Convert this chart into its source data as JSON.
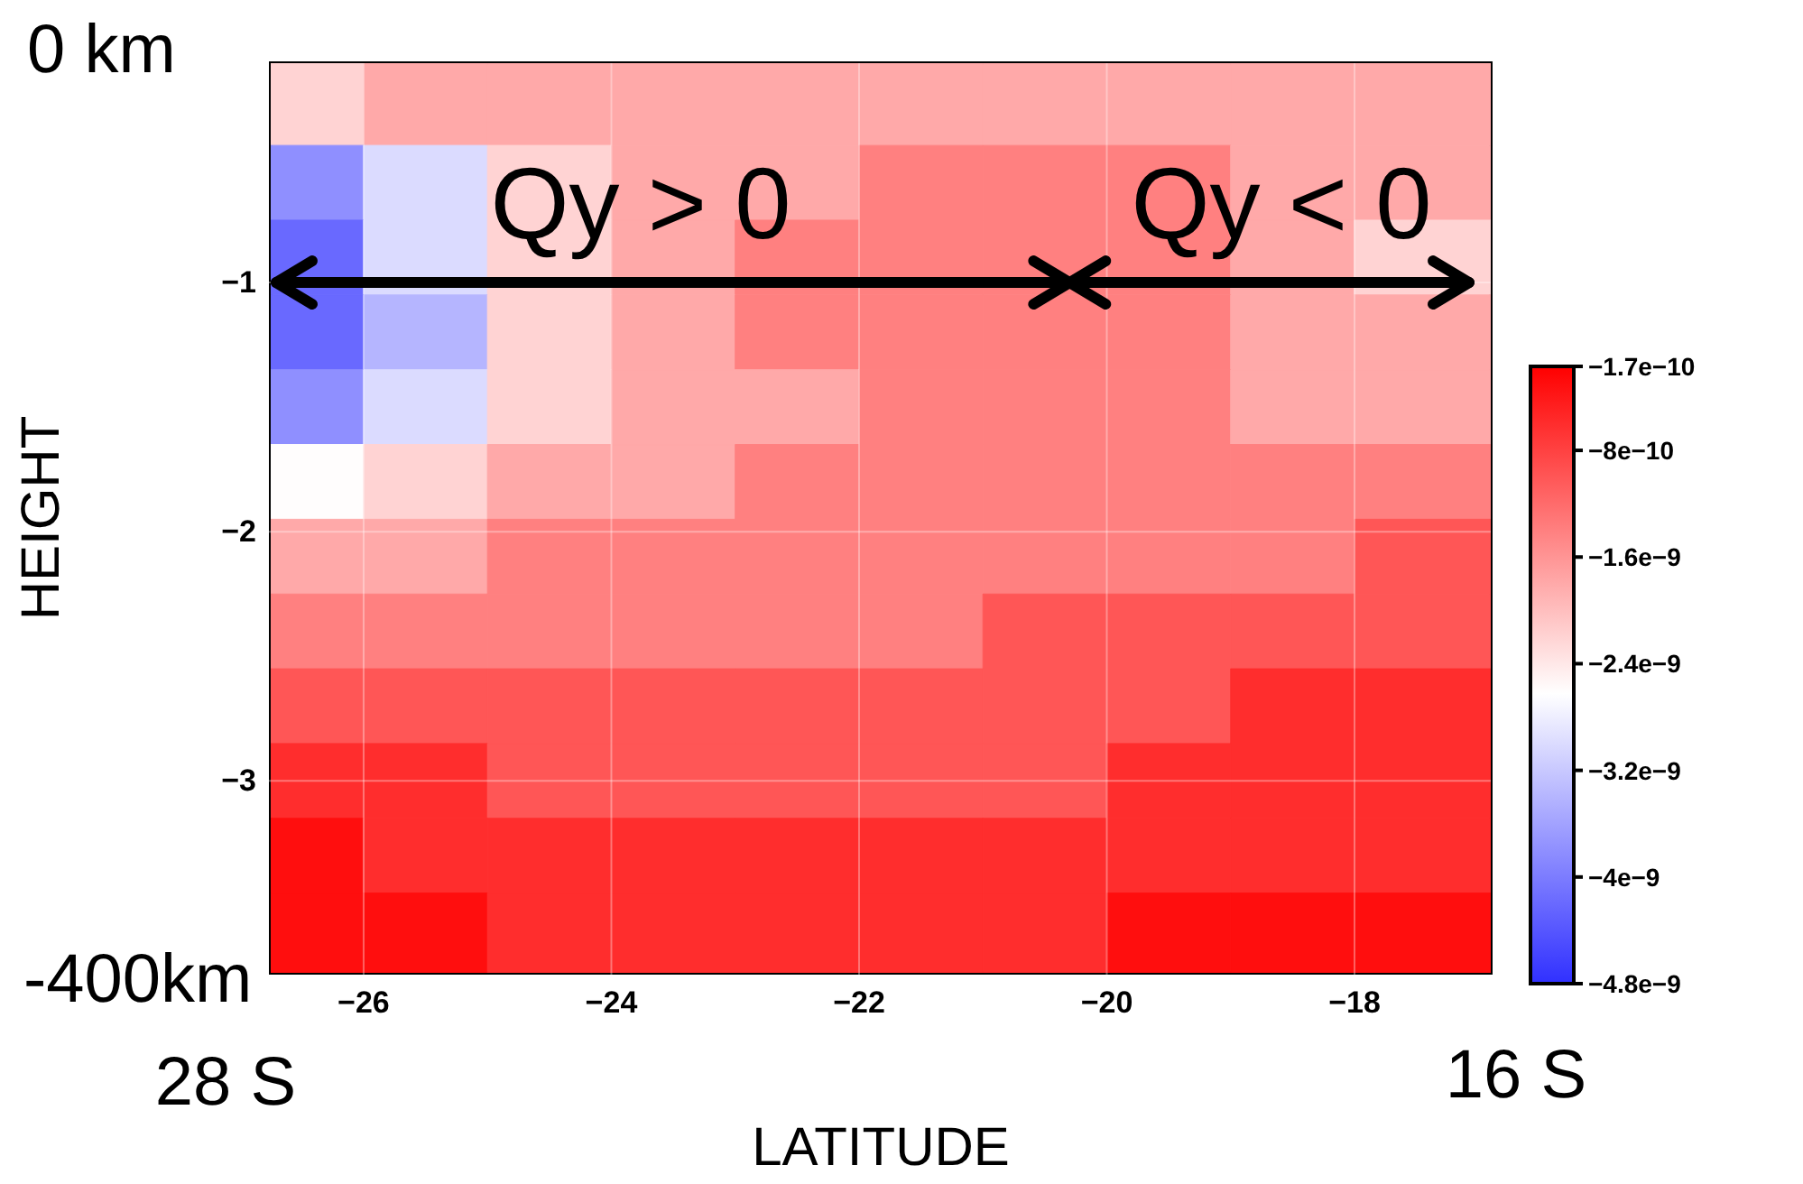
{
  "chart_data": {
    "type": "heatmap",
    "xlabel": "LATITUDE",
    "ylabel": "HEIGHT",
    "x": [
      -26.5,
      -25.5,
      -24.5,
      -23.5,
      -22.5,
      -21.5,
      -20.5,
      -19.5,
      -18.5,
      -17.5
    ],
    "y": [
      -0.3,
      -0.6,
      -0.9,
      -1.2,
      -1.5,
      -1.8,
      -2.1,
      -2.4,
      -2.7,
      -3.0,
      -3.3,
      -3.6
    ],
    "xlim": [
      -26.75,
      -16.9
    ],
    "xticks": [
      {
        "value": -26,
        "label": "−26"
      },
      {
        "value": -24,
        "label": "−24"
      },
      {
        "value": -22,
        "label": "−22"
      },
      {
        "value": -20,
        "label": "−20"
      },
      {
        "value": -18,
        "label": "−18"
      }
    ],
    "ylim": [
      -3.77,
      -0.12
    ],
    "yticks": [
      {
        "value": -1,
        "label": "−1"
      },
      {
        "value": -2,
        "label": "−2"
      },
      {
        "value": -3,
        "label": "−3"
      }
    ],
    "grid": true,
    "clim": [
      -4.8e-09,
      -1.7e-10
    ],
    "cticks": [
      {
        "value": -1.7e-10,
        "label": "−1.7e−10"
      },
      {
        "value": -8e-10,
        "label": "−8e−10"
      },
      {
        "value": -1.6e-09,
        "label": "−1.6e−9"
      },
      {
        "value": -2.4e-09,
        "label": "−2.4e−9"
      },
      {
        "value": -3.2e-09,
        "label": "−3.2e−9"
      },
      {
        "value": -4e-09,
        "label": "−4e−9"
      },
      {
        "value": -4.8e-09,
        "label": "−4.8e−9"
      }
    ],
    "cells": [
      [
        -2.2e-09,
        -1.8e-09,
        -1.8e-09,
        -1.8e-09,
        -1.8e-09,
        -1.8e-09,
        -1.8e-09,
        -1.8e-09,
        -1.8e-09,
        -1.8e-09
      ],
      [
        -3.8e-09,
        -3e-09,
        -2.2e-09,
        -1.8e-09,
        -1.8e-09,
        -1.4e-09,
        -1.4e-09,
        -1.4e-09,
        -1.8e-09,
        -1.8e-09
      ],
      [
        -4.2e-09,
        -3e-09,
        -2.2e-09,
        -1.8e-09,
        -1.4e-09,
        -1.4e-09,
        -1.4e-09,
        -1.4e-09,
        -1.8e-09,
        -2.2e-09
      ],
      [
        -4.2e-09,
        -3.4e-09,
        -2.2e-09,
        -1.8e-09,
        -1.4e-09,
        -1.4e-09,
        -1.4e-09,
        -1.4e-09,
        -1.8e-09,
        -1.8e-09
      ],
      [
        -3.8e-09,
        -3e-09,
        -2.2e-09,
        -1.8e-09,
        -1.8e-09,
        -1.4e-09,
        -1.4e-09,
        -1.4e-09,
        -1.8e-09,
        -1.8e-09
      ],
      [
        -2.6e-09,
        -2.2e-09,
        -1.8e-09,
        -1.8e-09,
        -1.4e-09,
        -1.4e-09,
        -1.4e-09,
        -1.4e-09,
        -1.4e-09,
        -1.4e-09
      ],
      [
        -1.8e-09,
        -1.8e-09,
        -1.4e-09,
        -1.4e-09,
        -1.4e-09,
        -1.4e-09,
        -1.4e-09,
        -1.4e-09,
        -1.4e-09,
        -1e-09
      ],
      [
        -1.4e-09,
        -1.4e-09,
        -1.4e-09,
        -1.4e-09,
        -1.4e-09,
        -1.4e-09,
        -1e-09,
        -1e-09,
        -1e-09,
        -1e-09
      ],
      [
        -1e-09,
        -1e-09,
        -1e-09,
        -1e-09,
        -1e-09,
        -1e-09,
        -1e-09,
        -1e-09,
        -6e-10,
        -6e-10
      ],
      [
        -6e-10,
        -6e-10,
        -1e-09,
        -1e-09,
        -1e-09,
        -1e-09,
        -1e-09,
        -6e-10,
        -6e-10,
        -6e-10
      ],
      [
        -3e-10,
        -6e-10,
        -6e-10,
        -6e-10,
        -6e-10,
        -6e-10,
        -6e-10,
        -6e-10,
        -6e-10,
        -6e-10
      ],
      [
        -3e-10,
        -3e-10,
        -6e-10,
        -6e-10,
        -6e-10,
        -6e-10,
        -6e-10,
        -3e-10,
        -3e-10,
        -3e-10
      ]
    ],
    "annotations": [
      "0 km",
      "-400km",
      "28 S",
      "16 S",
      "Qy > 0",
      "Qy < 0"
    ]
  }
}
